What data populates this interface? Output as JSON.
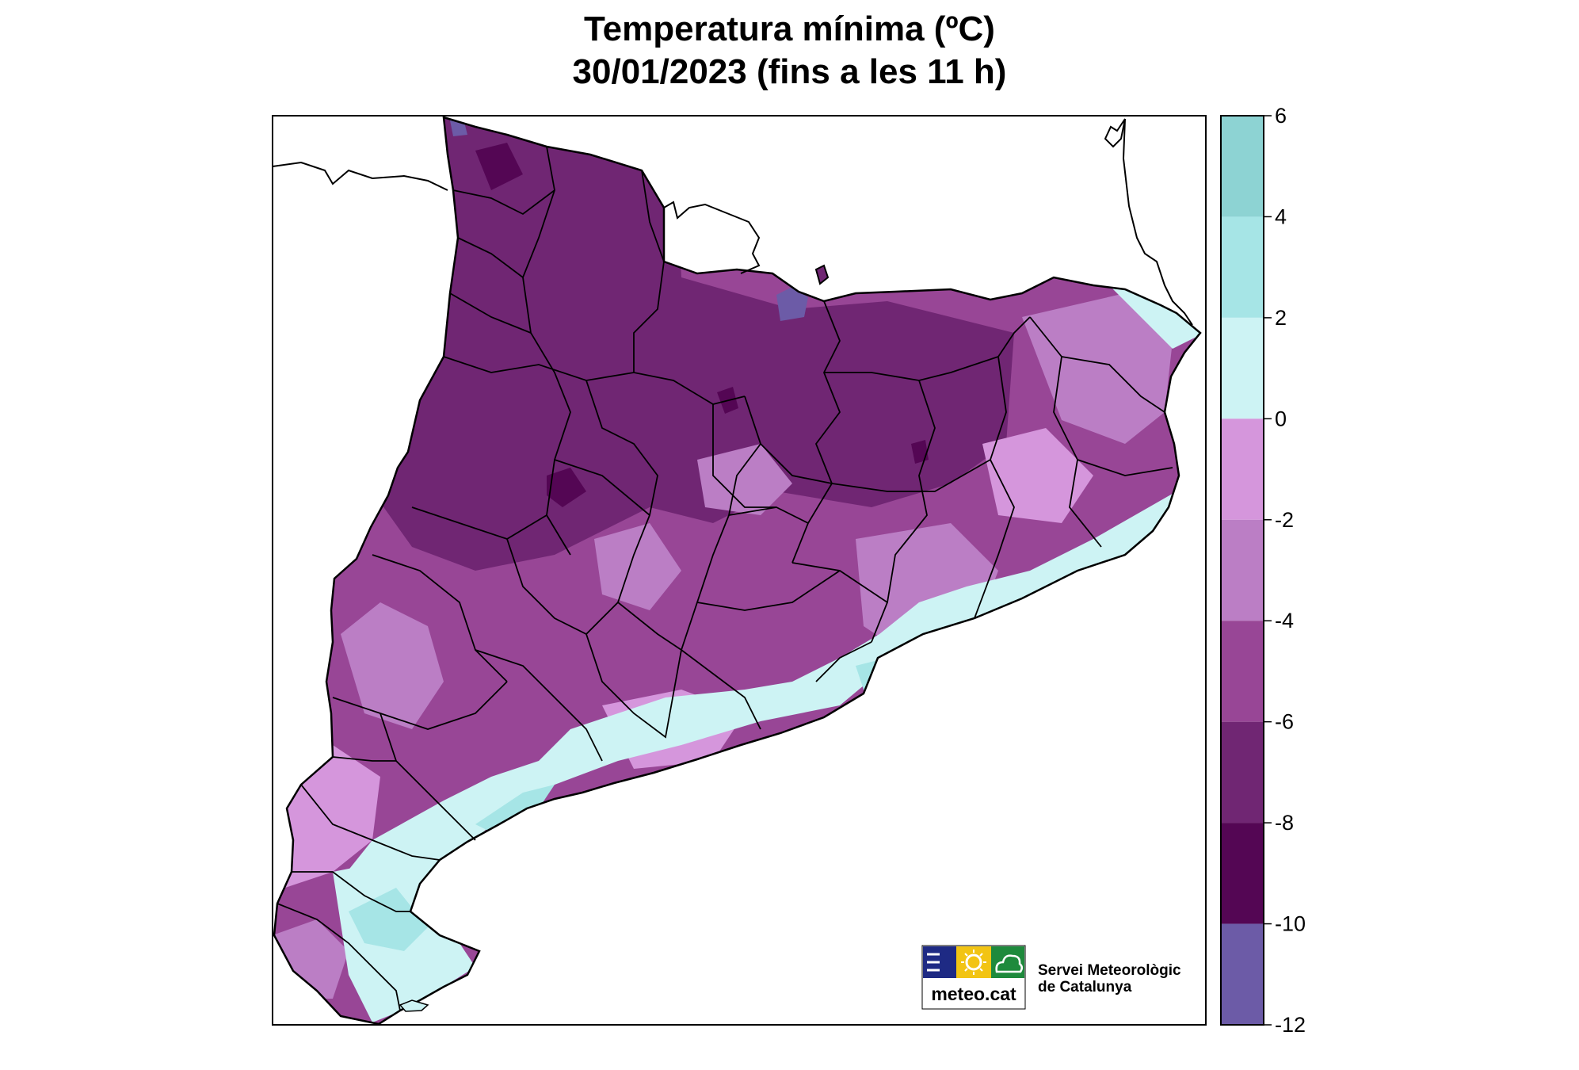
{
  "title": "Temperatura mínima (ºC)",
  "subtitle": "30/01/2023 (fins a les 11 h)",
  "legend": {
    "bins": [
      {
        "from": 4,
        "to": 6,
        "color": "#8dd3d3"
      },
      {
        "from": 2,
        "to": 4,
        "color": "#a6e5e6"
      },
      {
        "from": 0,
        "to": 2,
        "color": "#cdf3f4"
      },
      {
        "from": -2,
        "to": 0,
        "color": "#d596dc"
      },
      {
        "from": -4,
        "to": -2,
        "color": "#bb7ec5"
      },
      {
        "from": -6,
        "to": -4,
        "color": "#984696"
      },
      {
        "from": -8,
        "to": -6,
        "color": "#702673"
      },
      {
        "from": -10,
        "to": -8,
        "color": "#540654"
      },
      {
        "from": -12,
        "to": -10,
        "color": "#6c5ba7"
      }
    ],
    "ticks": [
      "6",
      "4",
      "2",
      "0",
      "-2",
      "-4",
      "-6",
      "-8",
      "-10",
      "-12"
    ]
  },
  "logo": {
    "word": "meteo.cat",
    "org_line1": "Servei Meteorològic",
    "org_line2": "de Catalunya",
    "colors": {
      "blue": "#1e2a84",
      "yellow": "#f2c413",
      "green": "#1e8a3c"
    }
  }
}
